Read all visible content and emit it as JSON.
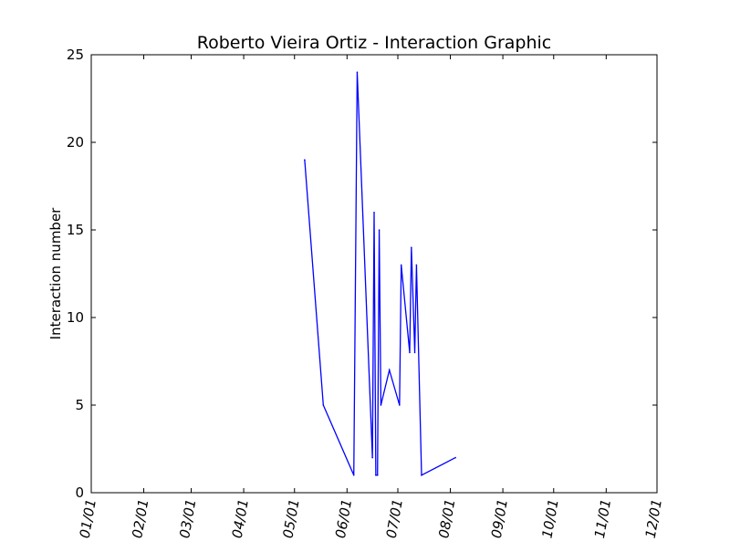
{
  "chart_data": {
    "type": "line",
    "title": "Roberto Vieira Ortiz - Interaction Graphic",
    "xlabel": "",
    "ylabel": "Interaction number",
    "x_axis_kind": "date",
    "xlim": [
      "01-01",
      "12-01"
    ],
    "ylim": [
      0,
      25
    ],
    "x_ticks": [
      "01-01",
      "02-01",
      "03-01",
      "04-01",
      "05-01",
      "06-01",
      "07-01",
      "08-01",
      "09-01",
      "10-01",
      "11-01",
      "12-01"
    ],
    "x_tick_labels": [
      "01/01",
      "02/01",
      "03/01",
      "04/01",
      "05/01",
      "06/01",
      "07/01",
      "08/01",
      "09/01",
      "10/01",
      "11/01",
      "12/01"
    ],
    "y_ticks": [
      0,
      5,
      10,
      15,
      20,
      25
    ],
    "y_tick_labels": [
      "0",
      "5",
      "10",
      "15",
      "20",
      "25"
    ],
    "grid": false,
    "legend": "none",
    "line_color": "#0000ff",
    "series": [
      {
        "points": [
          {
            "x": "05-07",
            "y": 19
          },
          {
            "x": "05-18",
            "y": 5
          },
          {
            "x": "06-05",
            "y": 1
          },
          {
            "x": "06-07",
            "y": 24
          },
          {
            "x": "06-16",
            "y": 2
          },
          {
            "x": "06-17",
            "y": 16
          },
          {
            "x": "06-18",
            "y": 1
          },
          {
            "x": "06-19",
            "y": 1
          },
          {
            "x": "06-20",
            "y": 15
          },
          {
            "x": "06-21",
            "y": 5
          },
          {
            "x": "06-26",
            "y": 7
          },
          {
            "x": "07-02",
            "y": 5
          },
          {
            "x": "07-03",
            "y": 13
          },
          {
            "x": "07-08",
            "y": 8
          },
          {
            "x": "07-09",
            "y": 14
          },
          {
            "x": "07-11",
            "y": 8
          },
          {
            "x": "07-12",
            "y": 13
          },
          {
            "x": "07-15",
            "y": 1
          },
          {
            "x": "08-04",
            "y": 2
          }
        ]
      }
    ]
  }
}
